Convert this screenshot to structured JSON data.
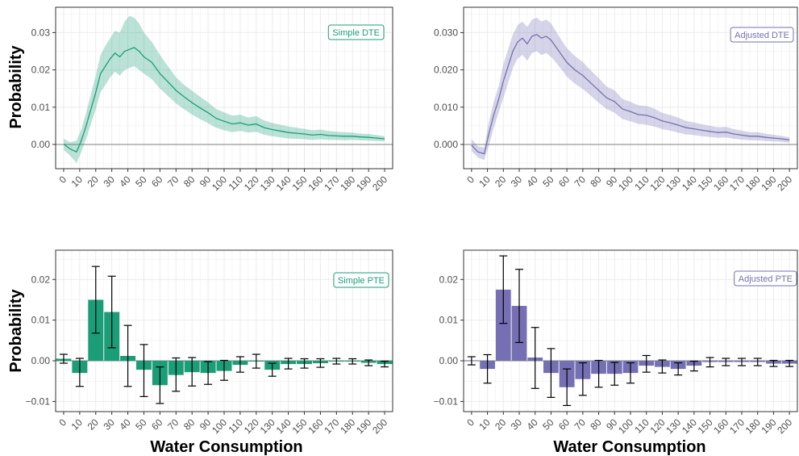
{
  "colors": {
    "green": "#1b9e77",
    "purple": "#7570b3",
    "zero_line": "#999999",
    "grid": "#ebebeb",
    "error_bar": "#000000"
  },
  "axis_titles": {
    "y": "Probability",
    "x": "Water Consumption"
  },
  "chart_data": [
    {
      "type": "line",
      "legend": "Simple DTE",
      "legend_position": "top-right",
      "color": "green",
      "ylabel": "Probability",
      "xlabel": "",
      "xlim": [
        -5,
        205
      ],
      "ylim": [
        -0.0065,
        0.0368
      ],
      "y_ticks": [
        0.0,
        0.01,
        0.02,
        0.03
      ],
      "y_tick_labels": [
        "0.00",
        "0.01",
        "0.02",
        "0.03"
      ],
      "x_ticks": [
        0,
        10,
        20,
        30,
        40,
        50,
        60,
        70,
        80,
        90,
        100,
        110,
        120,
        130,
        140,
        150,
        160,
        170,
        180,
        190,
        200
      ],
      "x": [
        0,
        4,
        8,
        11,
        14,
        17,
        20,
        23,
        26,
        29,
        32,
        35,
        38,
        41,
        44,
        47,
        50,
        55,
        60,
        65,
        70,
        75,
        80,
        85,
        90,
        95,
        100,
        105,
        110,
        115,
        120,
        125,
        130,
        135,
        140,
        145,
        150,
        155,
        160,
        165,
        170,
        175,
        180,
        185,
        190,
        195,
        200
      ],
      "y": [
        0.0001,
        -0.0012,
        -0.002,
        0.001,
        0.005,
        0.0095,
        0.014,
        0.019,
        0.021,
        0.023,
        0.0245,
        0.0235,
        0.025,
        0.0255,
        0.026,
        0.025,
        0.0235,
        0.022,
        0.019,
        0.0168,
        0.0145,
        0.0128,
        0.0112,
        0.0098,
        0.0085,
        0.007,
        0.0062,
        0.0055,
        0.0058,
        0.0052,
        0.0055,
        0.0045,
        0.004,
        0.0036,
        0.0032,
        0.003,
        0.0028,
        0.0025,
        0.0027,
        0.0024,
        0.0023,
        0.0022,
        0.0022,
        0.002,
        0.0019,
        0.0017,
        0.0015
      ],
      "lower": [
        -0.0015,
        -0.003,
        -0.005,
        -0.002,
        0.0015,
        0.0055,
        0.0095,
        0.014,
        0.016,
        0.018,
        0.0195,
        0.0185,
        0.02,
        0.0205,
        0.021,
        0.02,
        0.019,
        0.0175,
        0.015,
        0.013,
        0.011,
        0.0095,
        0.008,
        0.0068,
        0.0057,
        0.0045,
        0.0038,
        0.0033,
        0.0036,
        0.0032,
        0.0034,
        0.0026,
        0.0022,
        0.0019,
        0.0016,
        0.0015,
        0.0014,
        0.0012,
        0.0014,
        0.0012,
        0.0012,
        0.0011,
        0.0012,
        0.0011,
        0.001,
        0.0009,
        0.0008
      ],
      "upper": [
        0.0015,
        0.0006,
        0.001,
        0.004,
        0.0085,
        0.0135,
        0.0185,
        0.024,
        0.0265,
        0.0285,
        0.0305,
        0.03,
        0.033,
        0.0345,
        0.034,
        0.0325,
        0.03,
        0.0275,
        0.024,
        0.021,
        0.018,
        0.016,
        0.0144,
        0.0128,
        0.0113,
        0.0095,
        0.0086,
        0.0077,
        0.008,
        0.0072,
        0.0076,
        0.0064,
        0.0058,
        0.0053,
        0.0048,
        0.0045,
        0.0042,
        0.0038,
        0.004,
        0.0036,
        0.0034,
        0.0033,
        0.0032,
        0.0029,
        0.0028,
        0.0025,
        0.0022
      ]
    },
    {
      "type": "line",
      "legend": "Adjusted DTE",
      "legend_position": "top-right",
      "color": "purple",
      "ylabel": "",
      "xlabel": "",
      "xlim": [
        -5,
        205
      ],
      "ylim": [
        -0.0065,
        0.0368
      ],
      "y_ticks": [
        0.0,
        0.01,
        0.02,
        0.03
      ],
      "y_tick_labels": [
        "0.000",
        "0.010",
        "0.020",
        "0.030"
      ],
      "x_ticks": [
        0,
        10,
        20,
        30,
        40,
        50,
        60,
        70,
        80,
        90,
        100,
        110,
        120,
        130,
        140,
        150,
        160,
        170,
        180,
        190,
        200
      ],
      "x": [
        0,
        4,
        8,
        11,
        14,
        17,
        20,
        23,
        26,
        29,
        32,
        35,
        38,
        41,
        44,
        47,
        50,
        55,
        60,
        65,
        70,
        75,
        80,
        85,
        90,
        95,
        100,
        105,
        110,
        115,
        120,
        125,
        130,
        135,
        140,
        145,
        150,
        155,
        160,
        165,
        170,
        175,
        180,
        185,
        190,
        195,
        200
      ],
      "y": [
        -0.0002,
        -0.002,
        -0.0025,
        0.003,
        0.008,
        0.012,
        0.017,
        0.021,
        0.025,
        0.0275,
        0.0285,
        0.027,
        0.029,
        0.0295,
        0.0285,
        0.029,
        0.028,
        0.025,
        0.022,
        0.02,
        0.0185,
        0.0165,
        0.0145,
        0.0125,
        0.0115,
        0.0095,
        0.0088,
        0.008,
        0.0078,
        0.0072,
        0.0063,
        0.0058,
        0.0052,
        0.0045,
        0.0042,
        0.0038,
        0.0035,
        0.0032,
        0.0033,
        0.0028,
        0.0025,
        0.0022,
        0.0022,
        0.0019,
        0.0017,
        0.0015,
        0.0012
      ],
      "lower": [
        -0.0018,
        -0.0035,
        -0.0042,
        -0.0002,
        0.0045,
        0.0085,
        0.0125,
        0.0165,
        0.0205,
        0.023,
        0.024,
        0.0225,
        0.0245,
        0.025,
        0.024,
        0.0245,
        0.0235,
        0.021,
        0.0182,
        0.0163,
        0.0149,
        0.0131,
        0.0112,
        0.0095,
        0.0085,
        0.0068,
        0.0062,
        0.0055,
        0.0053,
        0.0048,
        0.0041,
        0.0037,
        0.0032,
        0.0027,
        0.0025,
        0.0022,
        0.002,
        0.0018,
        0.0019,
        0.0015,
        0.0013,
        0.0011,
        0.0011,
        0.0009,
        0.0008,
        0.0007,
        0.0005
      ],
      "upper": [
        0.0014,
        -0.0005,
        -0.0008,
        0.0062,
        0.0115,
        0.0155,
        0.0215,
        0.0255,
        0.0295,
        0.032,
        0.033,
        0.0315,
        0.0335,
        0.034,
        0.033,
        0.0335,
        0.0325,
        0.029,
        0.0258,
        0.0237,
        0.0221,
        0.0199,
        0.0178,
        0.0155,
        0.0145,
        0.0122,
        0.0114,
        0.0105,
        0.0103,
        0.0096,
        0.0085,
        0.0079,
        0.0072,
        0.0063,
        0.0059,
        0.0054,
        0.005,
        0.0046,
        0.0047,
        0.0041,
        0.0037,
        0.0033,
        0.0033,
        0.0029,
        0.0026,
        0.0023,
        0.0019
      ]
    },
    {
      "type": "bar",
      "legend": "Simple PTE",
      "legend_position": "top-right",
      "color": "green",
      "ylabel": "Probability",
      "xlabel": "Water Consumption",
      "xlim": [
        -5,
        205
      ],
      "ylim": [
        -0.0125,
        0.0272
      ],
      "y_ticks": [
        -0.01,
        0.0,
        0.01,
        0.02
      ],
      "y_tick_labels": [
        "−0.01",
        "0.00",
        "0.01",
        "0.02"
      ],
      "x_ticks": [
        0,
        10,
        20,
        30,
        40,
        50,
        60,
        70,
        80,
        90,
        100,
        110,
        120,
        130,
        140,
        150,
        160,
        170,
        180,
        190,
        200
      ],
      "x": [
        0,
        10,
        20,
        30,
        40,
        50,
        60,
        70,
        80,
        90,
        100,
        110,
        120,
        130,
        140,
        150,
        160,
        170,
        180,
        190,
        200
      ],
      "values": [
        0.0005,
        -0.003,
        0.015,
        0.012,
        0.0012,
        -0.0022,
        -0.006,
        -0.0035,
        -0.0028,
        -0.003,
        -0.0025,
        -0.001,
        -0.0002,
        -0.0022,
        -0.0008,
        -0.0008,
        -0.0006,
        -0.0002,
        -0.0002,
        -0.0005,
        -0.0008
      ],
      "err_low": [
        -0.0006,
        -0.0063,
        0.0068,
        0.0032,
        -0.0063,
        -0.0088,
        -0.0105,
        -0.0075,
        -0.0062,
        -0.0058,
        -0.0048,
        -0.0028,
        -0.0018,
        -0.0038,
        -0.002,
        -0.0018,
        -0.0016,
        -0.0008,
        -0.0008,
        -0.0012,
        -0.0015
      ],
      "err_high": [
        0.0016,
        0.0006,
        0.0232,
        0.0208,
        0.0087,
        0.004,
        -0.0015,
        0.0007,
        0.0008,
        -0.0002,
        0.0001,
        0.001,
        0.0016,
        -0.0006,
        0.0006,
        0.0005,
        0.0005,
        0.0006,
        0.0005,
        0.0002,
        -0.0001
      ]
    },
    {
      "type": "bar",
      "legend": "Adjusted PTE",
      "legend_position": "top-right",
      "color": "purple",
      "ylabel": "",
      "xlabel": "Water Consumption",
      "xlim": [
        -5,
        205
      ],
      "ylim": [
        -0.0125,
        0.0272
      ],
      "y_ticks": [
        -0.01,
        0.0,
        0.01,
        0.02
      ],
      "y_tick_labels": [
        "−0.01",
        "0.00",
        "0.01",
        "0.02"
      ],
      "x_ticks": [
        0,
        10,
        20,
        30,
        40,
        50,
        60,
        70,
        80,
        90,
        100,
        110,
        120,
        130,
        140,
        150,
        160,
        170,
        180,
        190,
        200
      ],
      "x": [
        0,
        10,
        20,
        30,
        40,
        50,
        60,
        70,
        80,
        90,
        100,
        110,
        120,
        130,
        140,
        150,
        160,
        170,
        180,
        190,
        200
      ],
      "values": [
        0.0001,
        -0.002,
        0.0175,
        0.0135,
        0.0008,
        -0.003,
        -0.0065,
        -0.0045,
        -0.0032,
        -0.0032,
        -0.003,
        -0.0012,
        -0.0015,
        -0.002,
        -0.0012,
        -0.0003,
        -0.0003,
        -0.0003,
        -0.0003,
        -0.0007,
        -0.0007
      ],
      "err_low": [
        -0.001,
        -0.0055,
        0.0092,
        0.0045,
        -0.0068,
        -0.009,
        -0.011,
        -0.0085,
        -0.0065,
        -0.006,
        -0.0055,
        -0.0028,
        -0.003,
        -0.0035,
        -0.0025,
        -0.0015,
        -0.0012,
        -0.0012,
        -0.0012,
        -0.0014,
        -0.0014
      ],
      "err_high": [
        0.001,
        0.0015,
        0.0258,
        0.0225,
        0.0082,
        0.003,
        -0.002,
        -0.0005,
        0.0001,
        -0.0004,
        -0.0005,
        0.0013,
        0.0002,
        -0.0005,
        -0.0001,
        0.0008,
        0.0006,
        0.0006,
        0.0006,
        0.0001,
        0.0001
      ]
    }
  ]
}
